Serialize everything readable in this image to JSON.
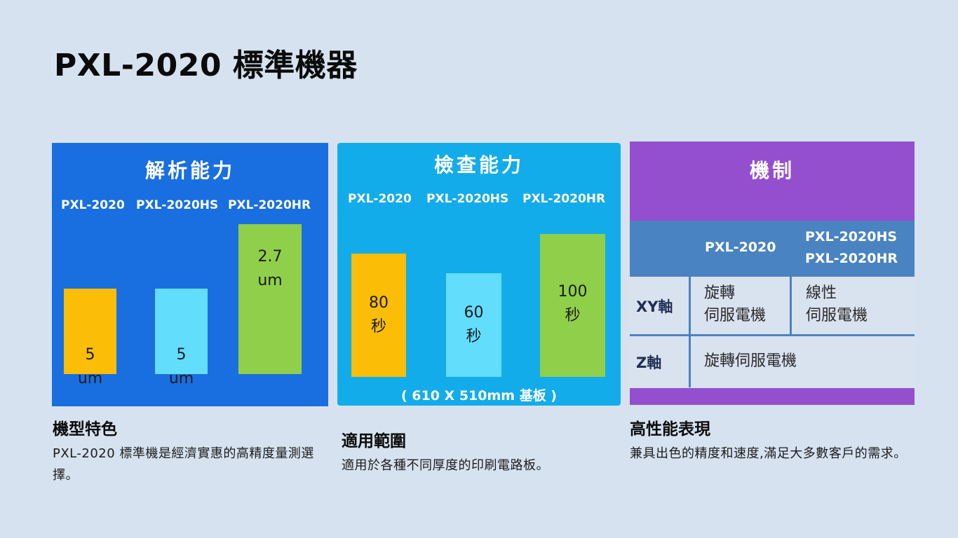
{
  "page": {
    "title": "PXL-2020 標準機器"
  },
  "panel1": {
    "title": "解析能力",
    "models": [
      "PXL-2020",
      "PXL-2020HS",
      "PXL-2020HR"
    ],
    "bars": [
      {
        "model": "PXL-2020",
        "value": 5,
        "unit": "um",
        "label": "5\num",
        "color": "#fbbd05"
      },
      {
        "model": "PXL-2020HS",
        "value": 5,
        "unit": "um",
        "label": "5\num",
        "color": "#62ddfb"
      },
      {
        "model": "PXL-2020HR",
        "value": 2.7,
        "unit": "um",
        "label": "2.7\num",
        "color": "#8fcf4a"
      }
    ]
  },
  "panel2": {
    "title": "檢查能力",
    "models": [
      "PXL-2020",
      "PXL-2020HS",
      "PXL-2020HR"
    ],
    "bars": [
      {
        "model": "PXL-2020",
        "value": 80,
        "unit": "秒",
        "label": "80\n秒",
        "color": "#fbbd05"
      },
      {
        "model": "PXL-2020HS",
        "value": 60,
        "unit": "秒",
        "label": "60\n秒",
        "color": "#62ddfb"
      },
      {
        "model": "PXL-2020HR",
        "value": 100,
        "unit": "秒",
        "label": "100\n秒",
        "color": "#8fcf4a"
      }
    ],
    "footnote": "( 610 X 510mm 基板 )"
  },
  "panel3": {
    "title": "機制",
    "col1": "PXL-2020",
    "col2_line1": "PXL-2020HS",
    "col2_line2": "PXL-2020HR",
    "row1_label": "XY軸",
    "row1_col1": "旋轉\n伺服電機",
    "row1_col2": "線性\n伺服電機",
    "row2_label": "Z軸",
    "row2_value": "旋轉伺服電機"
  },
  "captions": [
    {
      "title": "機型特色",
      "text": "PXL-2020 標準機是經濟實惠的高精度量測選擇。"
    },
    {
      "title": "適用範圍",
      "text": "適用於各種不同厚度的印刷電路板。"
    },
    {
      "title": "高性能表現",
      "text": "兼具出色的精度和速度,滿足大多數客戶的需求。"
    }
  ],
  "colors": {
    "background": "#d6e2ef",
    "panel1": "#1a6fe0",
    "panel2": "#12aceb",
    "panel3_accent": "#944fce",
    "panel3_band": "#4a83c2"
  }
}
